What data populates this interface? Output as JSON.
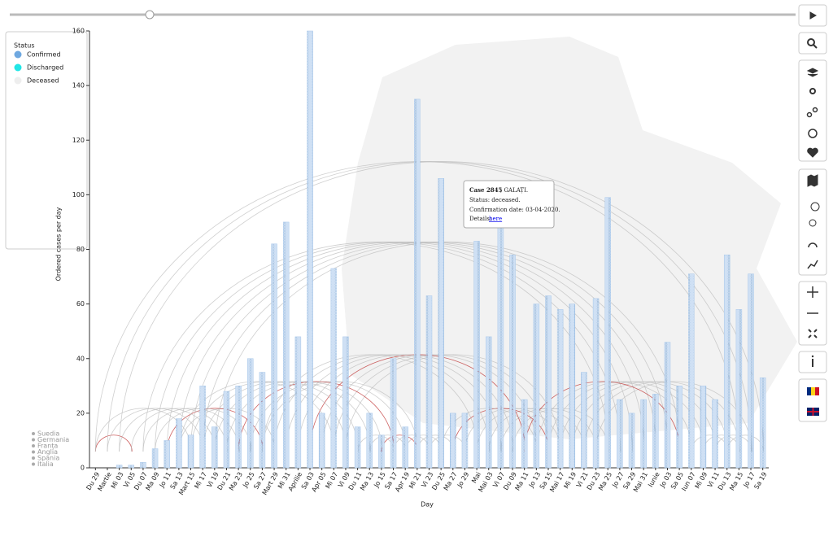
{
  "chart_data": {
    "type": "bar",
    "x_label": "Day",
    "y_label": "Ordered cases per day",
    "categories": [
      "Du 29",
      "Martie",
      "Mi 03",
      "Vi 05",
      "Du 07",
      "Ma 09",
      "Jo 11",
      "Sa 13",
      "Mart 15",
      "Mi 17",
      "Vi 19",
      "Du 21",
      "Ma 23",
      "Jo 25",
      "Sa 27",
      "Mart 29",
      "Mi 31",
      "Aprilie",
      "Sa 03",
      "Apr 05",
      "Mi 07",
      "Vi 09",
      "Du 11",
      "Ma 13",
      "Jo 15",
      "Sa 17",
      "Apr 19",
      "Mi 21",
      "Vi 23",
      "Du 25",
      "Ma 27",
      "Jo 29",
      "Mai",
      "Mai 03",
      "Vi 07",
      "Du 09",
      "Ma 11",
      "Jo 13",
      "Sa 15",
      "Mai 17",
      "Mi 19",
      "Vi 21",
      "Du 23",
      "Ma 25",
      "Jo 27",
      "Sa 29",
      "Mai 31",
      "Iunie",
      "Jo 03",
      "Sa 05",
      "Iun 07",
      "Mi 09",
      "Vi 11",
      "Du 13",
      "Ma 15",
      "Jo 17",
      "Sa 19"
    ],
    "values": [
      0,
      0,
      1,
      1,
      2,
      7,
      10,
      18,
      12,
      30,
      15,
      28,
      30,
      40,
      35,
      82,
      90,
      48,
      160,
      20,
      73,
      48,
      15,
      20,
      12,
      40,
      15,
      135,
      63,
      106,
      20,
      20,
      83,
      48,
      88,
      78,
      25,
      60,
      63,
      58,
      60,
      35,
      62,
      99,
      25,
      20,
      25,
      27,
      46,
      30,
      71,
      30,
      25,
      78,
      58,
      71,
      33
    ],
    "color": "#a9c8ea",
    "ylim": [
      0,
      160
    ],
    "yticks": [
      0,
      20,
      40,
      60,
      80,
      100,
      120,
      140,
      160
    ],
    "legend": {
      "title": "Status",
      "items": [
        {
          "label": "Confirmed",
          "color": "#6fa8e0"
        },
        {
          "label": "Discharged",
          "color": "#22e6e6"
        },
        {
          "label": "Deceased",
          "color": "#eeeeee"
        }
      ]
    }
  },
  "origin_labels": [
    "Suedia",
    "Germania",
    "Franța",
    "Anglia",
    "Spania",
    "Italia"
  ],
  "tooltip": {
    "case": "Case 2845",
    "county": ", GALAȚI.",
    "status": "Status: deceased.",
    "date": "Confirmation date: 03-04-2020.",
    "details": "Details:",
    "link": "here"
  }
}
